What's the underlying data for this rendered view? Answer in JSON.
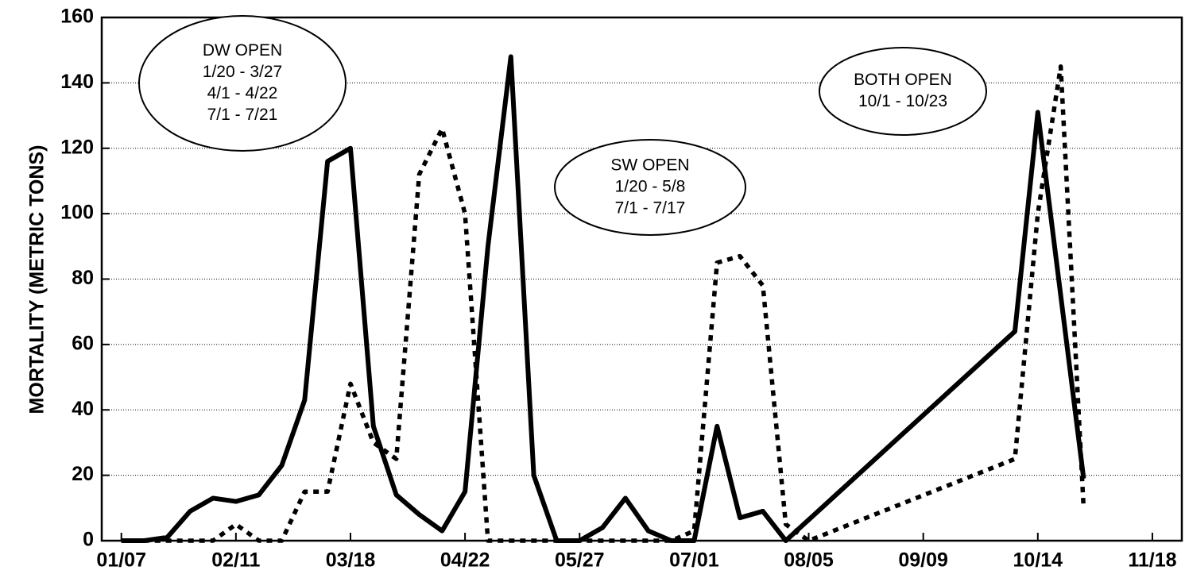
{
  "chart_data": {
    "type": "line",
    "ylabel": "MORTALITY  (METRIC TONS)",
    "xlim": [
      "01/01",
      "11/27"
    ],
    "xticks": [
      "01/07",
      "02/11",
      "03/18",
      "04/22",
      "05/27",
      "07/01",
      "08/05",
      "09/09",
      "10/14",
      "11/18"
    ],
    "ylim": [
      0,
      160
    ],
    "yticks": [
      0,
      20,
      40,
      60,
      80,
      100,
      120,
      140,
      160
    ],
    "grid": true,
    "series": [
      {
        "color": "#000000",
        "style": "solid",
        "x": [
          "01/07",
          "01/14",
          "01/21",
          "01/28",
          "02/04",
          "02/11",
          "02/18",
          "02/25",
          "03/04",
          "03/11",
          "03/18",
          "03/25",
          "04/01",
          "04/08",
          "04/15",
          "04/22",
          "04/29",
          "05/06",
          "05/13",
          "05/20",
          "05/27",
          "06/03",
          "06/10",
          "06/17",
          "06/24",
          "07/01",
          "07/08",
          "07/15",
          "07/22",
          "07/29",
          "10/07",
          "10/14",
          "10/28"
        ],
        "values": [
          0,
          0,
          1,
          9,
          13,
          12,
          14,
          23,
          43,
          116,
          120,
          35,
          14,
          8,
          3,
          15,
          90,
          148,
          20,
          0,
          0,
          4,
          13,
          3,
          0,
          0,
          35,
          7,
          9,
          0,
          64,
          131,
          19
        ]
      },
      {
        "color": "#000000",
        "style": "dashed",
        "x": [
          "01/07",
          "01/14",
          "01/21",
          "01/28",
          "02/04",
          "02/11",
          "02/18",
          "02/25",
          "03/04",
          "03/11",
          "03/18",
          "03/25",
          "04/01",
          "04/08",
          "04/15",
          "04/22",
          "04/29",
          "05/06",
          "05/13",
          "05/20",
          "05/27",
          "06/03",
          "06/10",
          "06/17",
          "06/24",
          "07/01",
          "07/08",
          "07/15",
          "07/22",
          "07/29",
          "08/05",
          "10/07",
          "10/14",
          "10/21",
          "10/28"
        ],
        "values": [
          0,
          0,
          0,
          0,
          0,
          5,
          0,
          0,
          15,
          15,
          48,
          30,
          25,
          112,
          126,
          100,
          0,
          0,
          0,
          0,
          0,
          0,
          0,
          0,
          0,
          3,
          85,
          87,
          78,
          5,
          0,
          25,
          100,
          145,
          10
        ]
      }
    ],
    "annotations": [
      {
        "lines": [
          "DW OPEN",
          "1/20 - 3/27",
          "4/1 - 4/22",
          "7/1 - 7/21"
        ]
      },
      {
        "lines": [
          "SW OPEN",
          "1/20 - 5/8",
          "7/1 - 7/17"
        ]
      },
      {
        "lines": [
          "BOTH OPEN",
          "10/1 - 10/23"
        ]
      }
    ]
  }
}
